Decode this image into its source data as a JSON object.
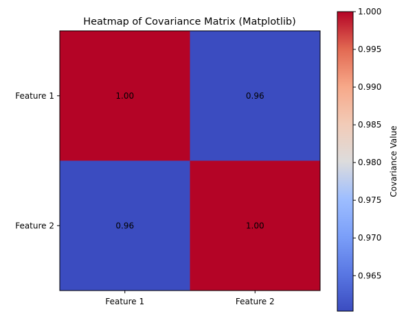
{
  "chart_data": {
    "type": "heatmap",
    "title": "Heatmap of Covariance Matrix (Matplotlib)",
    "x_categories": [
      "Feature 1",
      "Feature 2"
    ],
    "y_categories": [
      "Feature 1",
      "Feature 2"
    ],
    "values": [
      [
        1.0,
        0.9603
      ],
      [
        0.9603,
        1.0
      ]
    ],
    "cell_labels": [
      [
        "1.00",
        "0.96"
      ],
      [
        "0.96",
        "1.00"
      ]
    ],
    "colormap": "coolwarm",
    "colormap_low": "#3b4cc0",
    "colormap_mid": "#dddddd",
    "colormap_high": "#b40426",
    "colorbar": {
      "label": "Covariance Value",
      "range": [
        0.9603,
        1.0
      ],
      "ticks": [
        0.965,
        0.97,
        0.975,
        0.98,
        0.985,
        0.99,
        0.995,
        1.0
      ],
      "tick_labels": [
        "0.965",
        "0.970",
        "0.975",
        "0.980",
        "0.985",
        "0.990",
        "0.995",
        "1.000"
      ]
    }
  }
}
